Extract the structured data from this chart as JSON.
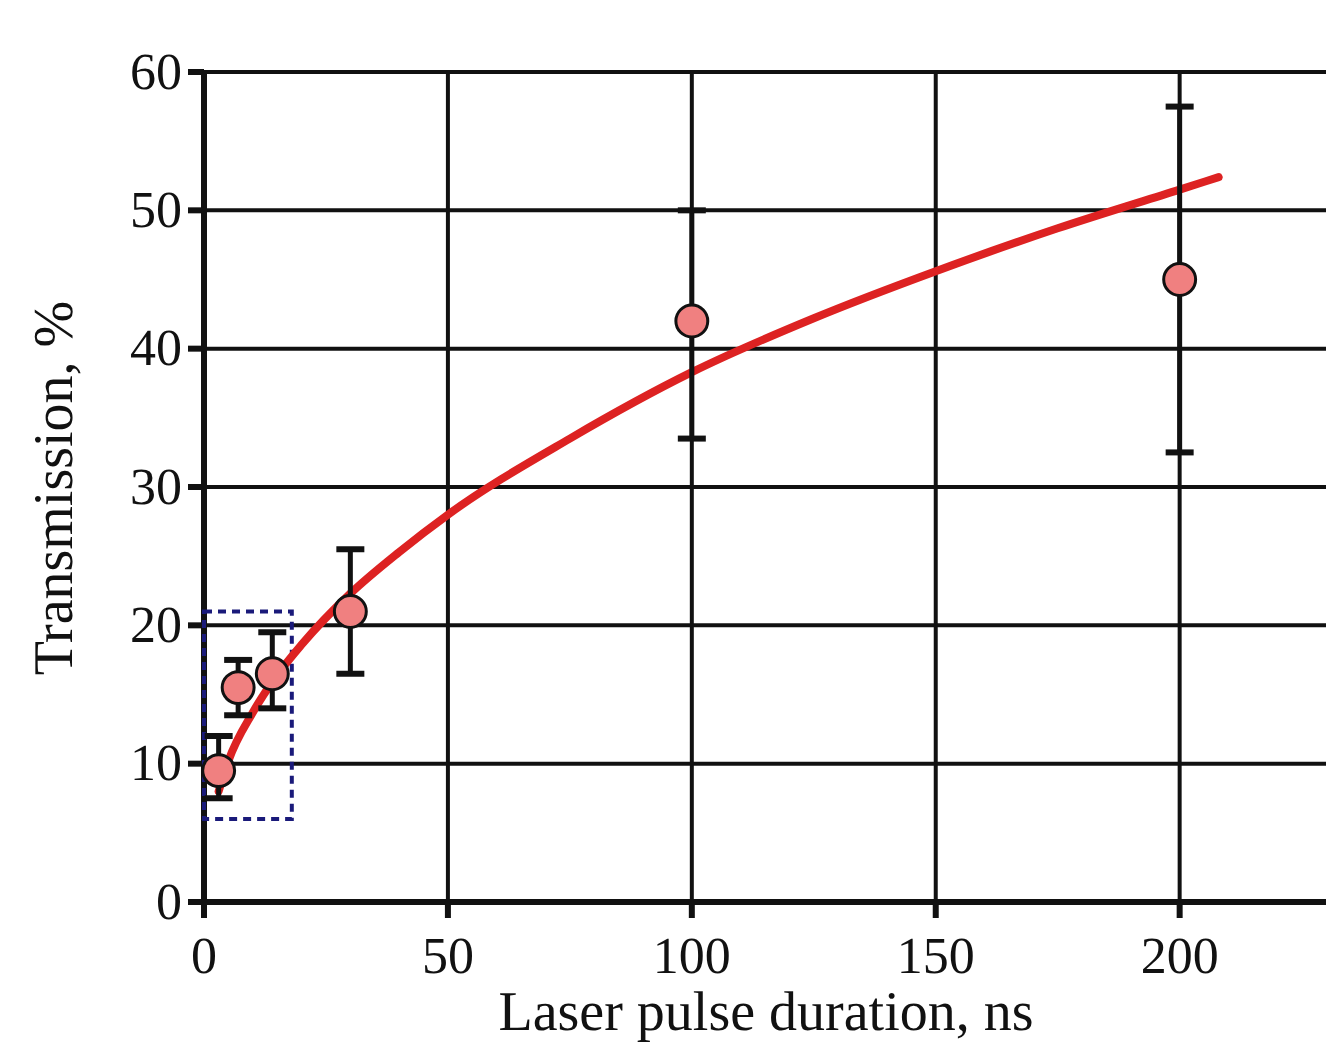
{
  "chart_data": {
    "type": "scatter",
    "xlabel": "Laser pulse duration, ns",
    "ylabel": "Transmission, %",
    "xlim": [
      0,
      230
    ],
    "ylim": [
      0,
      60
    ],
    "xticks": [
      0,
      50,
      100,
      150,
      200
    ],
    "yticks": [
      0,
      10,
      20,
      30,
      40,
      50,
      60
    ],
    "grid": true,
    "series": [
      {
        "color": "#f08080",
        "marker": "circle",
        "x": [
          3,
          7,
          14,
          30,
          100,
          200
        ],
        "values": [
          9.5,
          15.5,
          16.5,
          21,
          42,
          45
        ],
        "errors": [
          [
            7.5,
            12
          ],
          [
            13.5,
            17.5
          ],
          [
            14,
            19.5
          ],
          [
            16.5,
            25.5
          ],
          [
            33.5,
            50
          ],
          [
            32.5,
            57.5
          ]
        ]
      },
      {
        "type": "line",
        "color": "#dd2222",
        "marker": "none",
        "line_style": "solid",
        "x": [
          3,
          5,
          10,
          15,
          20,
          30,
          40,
          50,
          75,
          100,
          125,
          150,
          175,
          200,
          208
        ],
        "values": [
          8,
          10.2,
          13.7,
          16.4,
          18.6,
          22.3,
          25.3,
          28,
          33.5,
          38.3,
          42.2,
          45.6,
          48.7,
          51.5,
          52.4
        ]
      }
    ]
  }
}
